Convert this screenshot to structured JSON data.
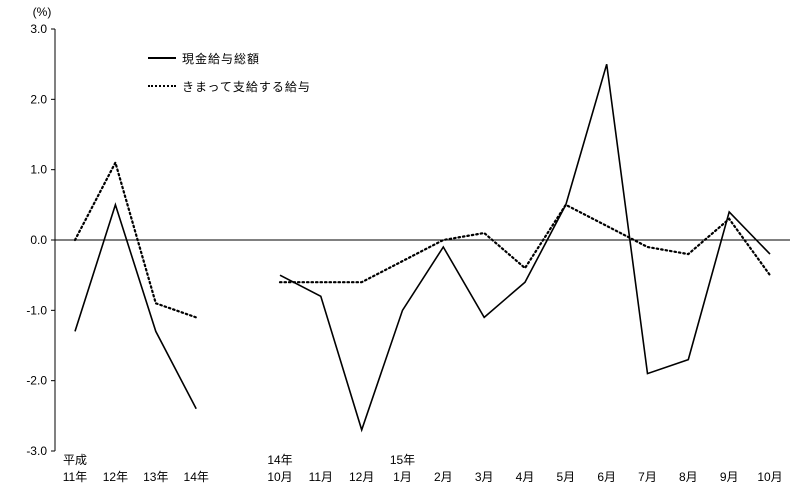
{
  "chart_data": {
    "type": "line",
    "title": "",
    "ylabel": "(%)",
    "ylim": [
      -3.0,
      3.0
    ],
    "y_ticks": [
      3.0,
      2.0,
      1.0,
      0.0,
      -1.0,
      -2.0,
      -3.0
    ],
    "grid": false,
    "legend_position": "top-left-inside",
    "legend": [
      {
        "label": "現金給与総額",
        "style": "solid"
      },
      {
        "label": "きまって支給する給与",
        "style": "dotted"
      }
    ],
    "segments": [
      {
        "note": "annual data, Heisei years",
        "categories": [
          "11年",
          "12年",
          "13年",
          "14年"
        ],
        "era_labels": [
          {
            "index": 0,
            "label": "平成"
          }
        ],
        "series": [
          {
            "name": "現金給与総額",
            "style": "solid",
            "values": [
              -1.3,
              0.5,
              -1.3,
              -2.4
            ]
          },
          {
            "name": "きまって支給する給与",
            "style": "dotted",
            "values": [
              0.0,
              1.1,
              -0.9,
              -1.1
            ]
          }
        ]
      },
      {
        "note": "monthly data",
        "categories": [
          "10月",
          "11月",
          "12月",
          "1月",
          "2月",
          "3月",
          "4月",
          "5月",
          "6月",
          "7月",
          "8月",
          "9月",
          "10月"
        ],
        "era_labels": [
          {
            "index": 0,
            "label": "14年"
          },
          {
            "index": 3,
            "label": "15年"
          }
        ],
        "series": [
          {
            "name": "現金給与総額",
            "style": "solid",
            "values": [
              -0.5,
              -0.8,
              -2.7,
              -1.0,
              -0.1,
              -1.1,
              -0.6,
              0.5,
              2.5,
              -1.9,
              -1.7,
              0.4,
              -0.2
            ]
          },
          {
            "name": "きまって支給する給与",
            "style": "dotted",
            "values": [
              -0.6,
              -0.6,
              -0.6,
              -0.3,
              0.0,
              0.1,
              -0.4,
              0.5,
              0.2,
              -0.1,
              -0.2,
              0.3,
              -0.5
            ]
          }
        ]
      }
    ]
  }
}
